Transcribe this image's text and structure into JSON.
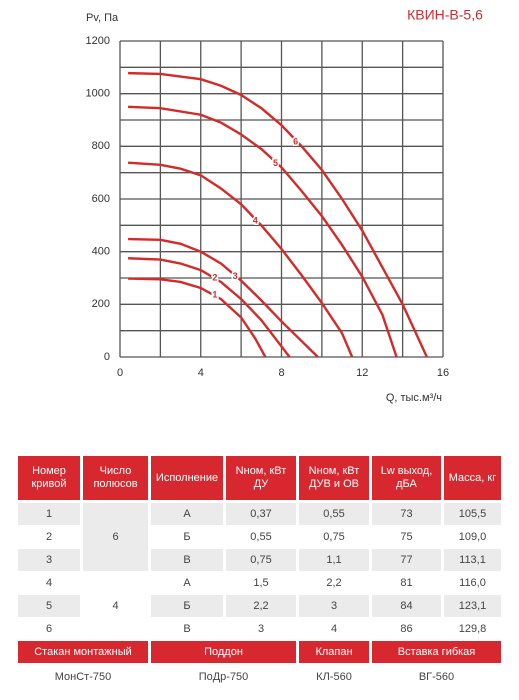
{
  "chart_data": {
    "type": "line",
    "title": "КВИН-В-5,6",
    "y_label": "Pv, Па",
    "x_label": "Q, тыс.м³/ч",
    "xlim": [
      0,
      16
    ],
    "ylim": [
      0,
      1200
    ],
    "xticks": [
      0,
      4,
      8,
      12,
      16
    ],
    "yticks": [
      0,
      200,
      400,
      600,
      800,
      1000,
      1200
    ],
    "xgrid": [
      0,
      2,
      4,
      6,
      8,
      10,
      12,
      14,
      16
    ],
    "ygrid": [
      0,
      100,
      200,
      300,
      400,
      500,
      600,
      700,
      800,
      900,
      1000,
      1100,
      1200
    ],
    "series": [
      {
        "name": "1",
        "color": "#d42a2a",
        "x": [
          0.4,
          2,
          3,
          4,
          5,
          6,
          6.7,
          7.2
        ],
        "values": [
          298,
          295,
          285,
          262,
          220,
          150,
          70,
          0
        ]
      },
      {
        "name": "2",
        "color": "#d42a2a",
        "x": [
          0.4,
          2,
          3,
          4,
          5,
          6,
          7,
          7.8,
          8.4
        ],
        "values": [
          375,
          370,
          355,
          330,
          285,
          220,
          140,
          60,
          0
        ]
      },
      {
        "name": "3",
        "color": "#d42a2a",
        "x": [
          0.4,
          2,
          3,
          4,
          5,
          6,
          7,
          8,
          9,
          9.8
        ],
        "values": [
          448,
          445,
          430,
          400,
          355,
          290,
          215,
          135,
          60,
          0
        ]
      },
      {
        "name": "4",
        "color": "#d42a2a",
        "x": [
          0.4,
          2,
          3,
          4,
          5,
          6,
          7,
          8,
          9,
          10,
          11,
          11.5
        ],
        "values": [
          738,
          730,
          715,
          690,
          640,
          580,
          500,
          410,
          310,
          205,
          90,
          0
        ]
      },
      {
        "name": "5",
        "color": "#d42a2a",
        "x": [
          0.4,
          2,
          4,
          5,
          6,
          7,
          8,
          9,
          10,
          11,
          12,
          13,
          13.7
        ],
        "values": [
          950,
          945,
          920,
          890,
          845,
          790,
          720,
          630,
          535,
          425,
          305,
          160,
          0
        ]
      },
      {
        "name": "6",
        "color": "#d42a2a",
        "x": [
          0.4,
          2,
          4,
          5,
          6,
          7,
          8,
          9,
          10,
          11,
          12,
          13,
          14,
          14.6,
          15.2
        ],
        "values": [
          1078,
          1075,
          1055,
          1030,
          995,
          945,
          880,
          800,
          710,
          600,
          480,
          340,
          200,
          100,
          0
        ]
      }
    ]
  },
  "table": {
    "header": [
      "Номер кривой",
      "Число полюсов",
      "Исполнение",
      "Nном, кВт ДУ",
      "Nном, кВт ДУВ и ОВ",
      "Lw выход, дБА",
      "Масса, кг"
    ],
    "rows": [
      [
        "1",
        "А",
        "0,37",
        "0,55",
        "73",
        "105,5"
      ],
      [
        "2",
        "Б",
        "0,55",
        "0,75",
        "75",
        "109,0"
      ],
      [
        "3",
        "В",
        "0,75",
        "1,1",
        "77",
        "113,1"
      ],
      [
        "4",
        "А",
        "1,5",
        "2,2",
        "81",
        "116,0"
      ],
      [
        "5",
        "Б",
        "2,2",
        "3",
        "84",
        "123,1"
      ],
      [
        "6",
        "В",
        "3",
        "4",
        "86",
        "129,8"
      ]
    ],
    "poles": [
      "6",
      "4"
    ],
    "footer_header": [
      "Стакан монтажный",
      "Поддон",
      "Клапан",
      "Вставка гибкая"
    ],
    "footer_values": [
      "МонСт-750",
      "ПоДр-750",
      "КЛ-560",
      "ВГ-560"
    ]
  }
}
